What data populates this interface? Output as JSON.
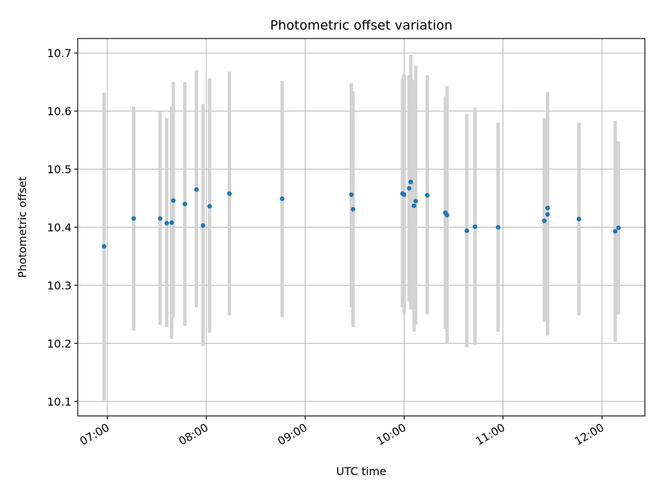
{
  "chart_data": {
    "type": "scatter",
    "title": "Photometric offset variation",
    "xlabel": "UTC time",
    "ylabel": "Photometric offset",
    "x_is_time": true,
    "xlim": [
      "06:42",
      "12:26"
    ],
    "ylim": [
      10.075,
      10.725
    ],
    "xticks": [
      "07:00",
      "08:00",
      "09:00",
      "10:00",
      "11:00",
      "12:00"
    ],
    "yticks": [
      10.1,
      10.2,
      10.3,
      10.4,
      10.5,
      10.6,
      10.7
    ],
    "ytick_labels": [
      "10.1",
      "10.2",
      "10.3",
      "10.4",
      "10.5",
      "10.6",
      "10.7"
    ],
    "grid": true,
    "colors": {
      "point": "#1f77b4",
      "errorbar": "#d3d3d3"
    },
    "series": [
      {
        "points": [
          {
            "x": "06:58",
            "y": 10.367,
            "ylo": 10.102,
            "yhi": 10.632
          },
          {
            "x": "07:16",
            "y": 10.415,
            "ylo": 10.222,
            "yhi": 10.608
          },
          {
            "x": "07:32",
            "y": 10.415,
            "ylo": 10.232,
            "yhi": 10.6
          },
          {
            "x": "07:36",
            "y": 10.407,
            "ylo": 10.228,
            "yhi": 10.588
          },
          {
            "x": "07:39",
            "y": 10.408,
            "ylo": 10.208,
            "yhi": 10.608
          },
          {
            "x": "07:40",
            "y": 10.446,
            "ylo": 10.244,
            "yhi": 10.65
          },
          {
            "x": "07:47",
            "y": 10.44,
            "ylo": 10.23,
            "yhi": 10.65
          },
          {
            "x": "07:54",
            "y": 10.465,
            "ylo": 10.262,
            "yhi": 10.67
          },
          {
            "x": "07:58",
            "y": 10.403,
            "ylo": 10.195,
            "yhi": 10.612
          },
          {
            "x": "08:02",
            "y": 10.436,
            "ylo": 10.218,
            "yhi": 10.656
          },
          {
            "x": "08:14",
            "y": 10.458,
            "ylo": 10.248,
            "yhi": 10.668
          },
          {
            "x": "08:46",
            "y": 10.449,
            "ylo": 10.245,
            "yhi": 10.652
          },
          {
            "x": "09:28",
            "y": 10.456,
            "ylo": 10.262,
            "yhi": 10.648
          },
          {
            "x": "09:29",
            "y": 10.431,
            "ylo": 10.228,
            "yhi": 10.634
          },
          {
            "x": "09:59",
            "y": 10.458,
            "ylo": 10.262,
            "yhi": 10.656
          },
          {
            "x": "10:00",
            "y": 10.456,
            "ylo": 10.25,
            "yhi": 10.664
          },
          {
            "x": "10:03",
            "y": 10.467,
            "ylo": 10.272,
            "yhi": 10.662
          },
          {
            "x": "10:04",
            "y": 10.478,
            "ylo": 10.258,
            "yhi": 10.697
          },
          {
            "x": "10:06",
            "y": 10.437,
            "ylo": 10.22,
            "yhi": 10.654
          },
          {
            "x": "10:07",
            "y": 10.445,
            "ylo": 10.232,
            "yhi": 10.678
          },
          {
            "x": "10:14",
            "y": 10.455,
            "ylo": 10.25,
            "yhi": 10.662
          },
          {
            "x": "10:25",
            "y": 10.425,
            "ylo": 10.225,
            "yhi": 10.625
          },
          {
            "x": "10:26",
            "y": 10.421,
            "ylo": 10.2,
            "yhi": 10.643
          },
          {
            "x": "10:38",
            "y": 10.394,
            "ylo": 10.193,
            "yhi": 10.595
          },
          {
            "x": "10:43",
            "y": 10.401,
            "ylo": 10.197,
            "yhi": 10.606
          },
          {
            "x": "10:57",
            "y": 10.4,
            "ylo": 10.22,
            "yhi": 10.58
          },
          {
            "x": "11:25",
            "y": 10.411,
            "ylo": 10.237,
            "yhi": 10.588
          },
          {
            "x": "11:27",
            "y": 10.433,
            "ylo": 10.235,
            "yhi": 10.618
          },
          {
            "x": "11:27",
            "y": 10.422,
            "ylo": 10.213,
            "yhi": 10.633
          },
          {
            "x": "11:46",
            "y": 10.414,
            "ylo": 10.248,
            "yhi": 10.58
          },
          {
            "x": "12:08",
            "y": 10.393,
            "ylo": 10.203,
            "yhi": 10.583
          },
          {
            "x": "12:10",
            "y": 10.399,
            "ylo": 10.25,
            "yhi": 10.548
          }
        ]
      }
    ]
  }
}
